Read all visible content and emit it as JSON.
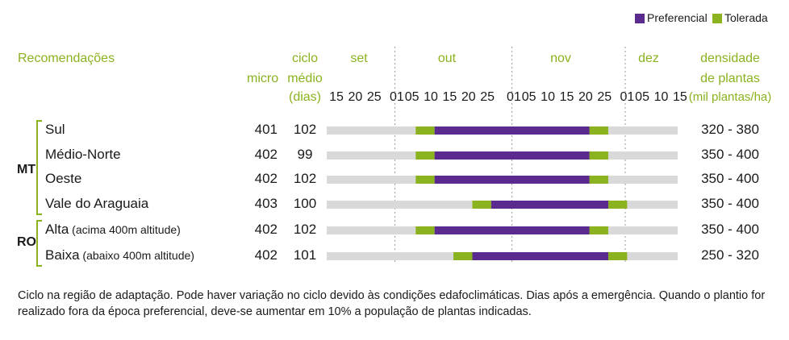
{
  "legend": [
    {
      "label": "Preferencial",
      "color": "#5b2a8f"
    },
    {
      "label": "Tolerada",
      "color": "#8bb21f"
    }
  ],
  "headers": {
    "recomendacoes": "Recomendações",
    "micro": "micro",
    "ciclo_line1": "ciclo",
    "ciclo_line2": "médio",
    "ciclo_line3": "(dias)",
    "densidade_line1": "densidade",
    "densidade_line2": "de plantas",
    "densidade_line3": "(mil plantas/ha)"
  },
  "months": [
    "set",
    "out",
    "nov",
    "dez"
  ],
  "ticks": [
    "15",
    "20",
    "25",
    "01",
    "05",
    "10",
    "15",
    "20",
    "25",
    "01",
    "05",
    "10",
    "15",
    "20",
    "25",
    "01",
    "05",
    "10",
    "15"
  ],
  "states": [
    "MT",
    "RO"
  ],
  "chart_data": {
    "type": "gantt",
    "title": "",
    "x_axis": {
      "unit": "days since 15 Sep",
      "range": [
        0,
        87
      ],
      "ticks": [
        {
          "label": "15",
          "day": 0
        },
        {
          "label": "20",
          "day": 5
        },
        {
          "label": "25",
          "day": 10
        },
        {
          "label": "01",
          "day": 16
        },
        {
          "label": "05",
          "day": 20
        },
        {
          "label": "10",
          "day": 25
        },
        {
          "label": "15",
          "day": 30
        },
        {
          "label": "20",
          "day": 35
        },
        {
          "label": "25",
          "day": 40
        },
        {
          "label": "01",
          "day": 47
        },
        {
          "label": "05",
          "day": 51
        },
        {
          "label": "10",
          "day": 56
        },
        {
          "label": "15",
          "day": 61
        },
        {
          "label": "20",
          "day": 66
        },
        {
          "label": "25",
          "day": 71
        },
        {
          "label": "01",
          "day": 77
        },
        {
          "label": "05",
          "day": 81
        },
        {
          "label": "10",
          "day": 86
        },
        {
          "label": "15",
          "day": 91
        }
      ],
      "month_dividers": [
        15.5,
        46.5,
        76.5
      ]
    },
    "rows": [
      {
        "state": "MT",
        "name": "Sul",
        "sub": "",
        "micro": "401",
        "ciclo": "102",
        "densidade": "320 - 380",
        "tolerada": [
          [
            21,
            26
          ],
          [
            67,
            72
          ]
        ],
        "preferencial": [
          26,
          67
        ]
      },
      {
        "state": "MT",
        "name": "Médio-Norte",
        "sub": "",
        "micro": "402",
        "ciclo": "99",
        "densidade": "350 - 400",
        "tolerada": [
          [
            21,
            26
          ],
          [
            67,
            72
          ]
        ],
        "preferencial": [
          26,
          67
        ]
      },
      {
        "state": "MT",
        "name": "Oeste",
        "sub": "",
        "micro": "402",
        "ciclo": "102",
        "densidade": "350 - 400",
        "tolerada": [
          [
            21,
            26
          ],
          [
            67,
            72
          ]
        ],
        "preferencial": [
          26,
          67
        ]
      },
      {
        "state": "MT",
        "name": "Vale do Araguaia",
        "sub": "",
        "micro": "403",
        "ciclo": "100",
        "densidade": "350 - 400",
        "tolerada": [
          [
            36,
            41
          ],
          [
            72,
            77
          ]
        ],
        "preferencial": [
          41,
          72
        ]
      },
      {
        "state": "RO",
        "name": "Alta",
        "sub": " (acima 400m altitude)",
        "micro": "402",
        "ciclo": "102",
        "densidade": "350 - 400",
        "tolerada": [
          [
            21,
            26
          ],
          [
            67,
            72
          ]
        ],
        "preferencial": [
          26,
          67
        ]
      },
      {
        "state": "RO",
        "name": "Baixa",
        "sub": " (abaixo 400m altitude)",
        "micro": "402",
        "ciclo": "101",
        "densidade": "250 - 320",
        "tolerada": [
          [
            31,
            36
          ],
          [
            72,
            77
          ]
        ],
        "preferencial": [
          36,
          72
        ]
      }
    ]
  },
  "footnote_line1": "Ciclo na região de adaptação. Pode haver variação no ciclo devido às condições edafoclimáticas. Dias após a emergência. Quando o plantio for",
  "footnote_line2": "realizado fora da época preferencial, deve-se aumentar em 10% a população de plantas indicadas."
}
